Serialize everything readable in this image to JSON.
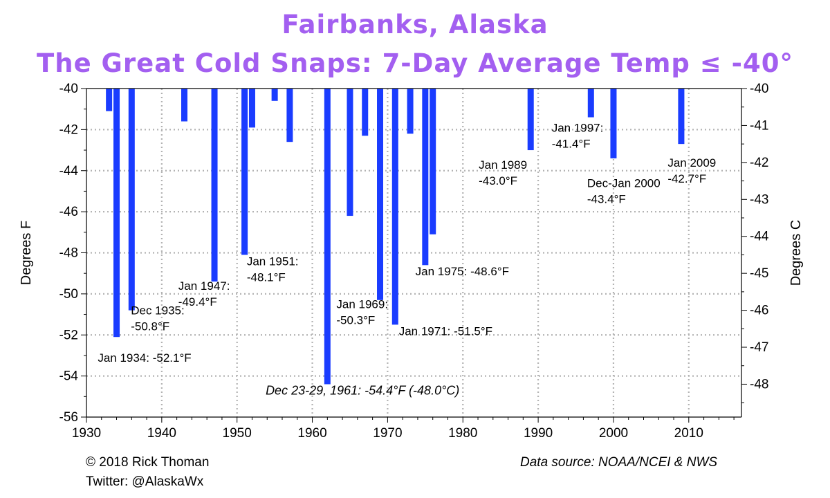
{
  "title": "Fairbanks, Alaska",
  "subtitle": "The Great Cold Snaps: 7-Day Average Temp ≤ -40°",
  "footer": {
    "copyright": "© 2018 Rick Thoman",
    "twitter": "Twitter: @AlaskaWx",
    "source": "Data source: NOAA/NCEI & NWS"
  },
  "chart_data": {
    "type": "bar",
    "xlabel": "",
    "ylabel": "Degrees F",
    "y2label": "Degrees C",
    "xlim": [
      1930,
      2017
    ],
    "ylim": [
      -56,
      -40
    ],
    "y2lim": [
      -48.89,
      -40
    ],
    "x_ticks": [
      1930,
      1940,
      1950,
      1960,
      1970,
      1980,
      1990,
      2000,
      2010
    ],
    "y_ticks": [
      -40,
      -42,
      -44,
      -46,
      -48,
      -50,
      -52,
      -54,
      -56
    ],
    "y2_ticks": [
      -40,
      -41,
      -42,
      -43,
      -44,
      -45,
      -46,
      -47,
      -48
    ],
    "grid": true,
    "bar_color": "#1a3cff",
    "values": [
      {
        "x": 1933,
        "y": -41.1
      },
      {
        "x": 1934,
        "y": -52.1
      },
      {
        "x": 1936,
        "y": -50.8
      },
      {
        "x": 1943,
        "y": -41.6
      },
      {
        "x": 1947,
        "y": -49.4
      },
      {
        "x": 1951,
        "y": -48.1
      },
      {
        "x": 1952,
        "y": -41.9
      },
      {
        "x": 1955,
        "y": -40.6
      },
      {
        "x": 1957,
        "y": -42.6
      },
      {
        "x": 1962,
        "y": -54.4
      },
      {
        "x": 1965,
        "y": -46.2
      },
      {
        "x": 1967,
        "y": -42.3
      },
      {
        "x": 1969,
        "y": -50.3
      },
      {
        "x": 1971,
        "y": -51.5
      },
      {
        "x": 1973,
        "y": -42.2
      },
      {
        "x": 1975,
        "y": -48.6
      },
      {
        "x": 1976,
        "y": -47.1
      },
      {
        "x": 1989,
        "y": -43.0
      },
      {
        "x": 1997,
        "y": -41.4
      },
      {
        "x": 2000,
        "y": -43.4
      },
      {
        "x": 2009,
        "y": -42.7
      }
    ],
    "annotations": [
      {
        "lines": [
          "Jan 1934: -52.1°F"
        ],
        "x": 1931.5,
        "y": -53.3,
        "italic": false
      },
      {
        "lines": [
          "Dec 1935:",
          "-50.8°F"
        ],
        "x": 1935.9,
        "y": -51.0,
        "italic": false
      },
      {
        "lines": [
          "Jan 1947:",
          "-49.4°F"
        ],
        "x": 1942.2,
        "y": -49.8,
        "italic": false
      },
      {
        "lines": [
          "Jan 1951:",
          "-48.1°F"
        ],
        "x": 1951.3,
        "y": -48.6,
        "italic": false
      },
      {
        "lines": [
          "Dec 23-29, 1961: -54.4°F (-48.0°C)"
        ],
        "x": 1953.8,
        "y": -54.9,
        "italic": true
      },
      {
        "lines": [
          "Jan 1969:",
          "-50.3°F"
        ],
        "x": 1963.2,
        "y": -50.7,
        "italic": false
      },
      {
        "lines": [
          "Jan 1971: -51.5°F"
        ],
        "x": 1971.5,
        "y": -52.0,
        "italic": false
      },
      {
        "lines": [
          "Jan 1975: -48.6°F"
        ],
        "x": 1973.7,
        "y": -49.1,
        "italic": false
      },
      {
        "lines": [
          "Jan 1989",
          "-43.0°F"
        ],
        "x": 1982.1,
        "y": -43.9,
        "italic": false
      },
      {
        "lines": [
          "Jan 1997:",
          "-41.4°F"
        ],
        "x": 1991.8,
        "y": -42.1,
        "italic": false
      },
      {
        "lines": [
          "Dec-Jan 2000",
          "-43.4°F"
        ],
        "x": 1996.5,
        "y": -44.8,
        "italic": false
      },
      {
        "lines": [
          "Jan 2009",
          "-42.7°F"
        ],
        "x": 2007.2,
        "y": -43.8,
        "italic": false
      }
    ]
  }
}
